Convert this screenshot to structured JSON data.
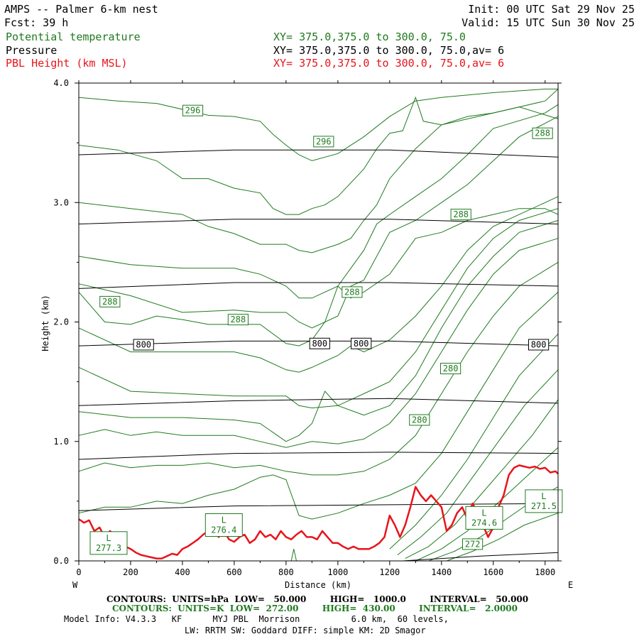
{
  "header": {
    "title": "AMPS -- Palmer 6-km nest",
    "fcst": "Fcst:   39 h",
    "init": "Init: 00 UTC Sat 29 Nov 25",
    "valid": "Valid: 15 UTC Sun 30 Nov 25",
    "field1": "Potential temperature",
    "field2": "Pressure",
    "field3": "PBL Height (km MSL)",
    "xy1": "XY= 375.0,375.0 to 300.0, 75.0",
    "xy2": "XY= 375.0,375.0 to 300.0, 75.0,av=  6",
    "xy3": "XY= 375.0,375.0 to 300.0, 75.0,av=  6"
  },
  "colors": {
    "theta": "#1f7a1f",
    "pressure": "#000000",
    "pbl": "#e8141b"
  },
  "footer": {
    "line1": "CONTOURS:  UNITS=hPa  LOW=   50.000        HIGH=   1000.0        INTERVAL=   50.000",
    "line2": "CONTOURS:  UNITS=K  LOW=  272.00        HIGH=  430.00        INTERVAL=   2.0000",
    "line3": "Model Info: V4.3.3   KF      MYJ PBL  Morrison          6.0 km,  60 levels,",
    "line4": "LW: RRTM SW: Goddard DIFF: simple KM: 2D Smagor"
  },
  "chart_data": {
    "type": "line",
    "xlabel": "Distance (km)",
    "ylabel": "Height (km)",
    "xlim": [
      0,
      1850
    ],
    "ylim": [
      0,
      4.0
    ],
    "x_ticks": [
      "0",
      "200",
      "400",
      "600",
      "800",
      "1000",
      "1200",
      "1400",
      "1600",
      "1800"
    ],
    "x_tick_values": [
      0,
      200,
      400,
      600,
      800,
      1000,
      1200,
      1400,
      1600,
      1800
    ],
    "y_ticks": [
      "0.0",
      "1.0",
      "2.0",
      "3.0",
      "4.0"
    ],
    "y_tick_values": [
      0,
      1,
      2,
      3,
      4
    ],
    "left_end_label": "W",
    "right_end_label": "E",
    "pressure_contours_hPa": [
      {
        "level": 600,
        "x": [
          0,
          600,
          1200,
          1850
        ],
        "y": [
          3.4,
          3.44,
          3.44,
          3.38
        ]
      },
      {
        "level": 700,
        "x": [
          0,
          600,
          1200,
          1850
        ],
        "y": [
          2.82,
          2.86,
          2.86,
          2.82
        ]
      },
      {
        "level": 750,
        "x": [
          0,
          600,
          1200,
          1850
        ],
        "y": [
          2.28,
          2.33,
          2.33,
          2.3
        ]
      },
      {
        "level": 800,
        "x": [
          0,
          600,
          1200,
          1850
        ],
        "y": [
          1.8,
          1.84,
          1.84,
          1.8
        ]
      },
      {
        "level": 850,
        "x": [
          0,
          600,
          1200,
          1850
        ],
        "y": [
          1.3,
          1.34,
          1.36,
          1.32
        ]
      },
      {
        "level": 900,
        "x": [
          0,
          600,
          1200,
          1850
        ],
        "y": [
          0.85,
          0.9,
          0.91,
          0.9
        ]
      },
      {
        "level": 950,
        "x": [
          0,
          600,
          1200,
          1850
        ],
        "y": [
          0.42,
          0.46,
          0.47,
          0.48
        ]
      },
      {
        "level": 1000,
        "x": [
          1250,
          1550,
          1850
        ],
        "y": [
          0.0,
          0.04,
          0.07
        ]
      }
    ],
    "theta_contours_K": [
      {
        "x": [
          0,
          150,
          300,
          500,
          600,
          700,
          750,
          800,
          850,
          900,
          1000,
          1100,
          1200,
          1300,
          1400,
          1600,
          1800,
          1850
        ],
        "y": [
          3.88,
          3.85,
          3.83,
          3.73,
          3.72,
          3.68,
          3.57,
          3.48,
          3.4,
          3.35,
          3.41,
          3.55,
          3.72,
          3.85,
          3.88,
          3.92,
          3.95,
          3.95
        ]
      },
      {
        "x": [
          0,
          150,
          300,
          400,
          500,
          600,
          700,
          750,
          800,
          850,
          900,
          950,
          1000,
          1100,
          1150,
          1200,
          1250,
          1300,
          1330,
          1400,
          1600,
          1800,
          1850
        ],
        "y": [
          3.48,
          3.44,
          3.35,
          3.2,
          3.2,
          3.12,
          3.08,
          2.95,
          2.9,
          2.9,
          2.95,
          2.98,
          3.05,
          3.28,
          3.45,
          3.58,
          3.6,
          3.88,
          3.68,
          3.65,
          3.75,
          3.85,
          3.95
        ]
      },
      {
        "x": [
          0,
          200,
          400,
          500,
          600,
          700,
          800,
          850,
          900,
          1000,
          1050,
          1100,
          1150,
          1200,
          1300,
          1400,
          1500,
          1600,
          1700,
          1850
        ],
        "y": [
          3.0,
          2.95,
          2.9,
          2.8,
          2.74,
          2.65,
          2.65,
          2.6,
          2.58,
          2.65,
          2.7,
          2.85,
          2.98,
          3.2,
          3.45,
          3.65,
          3.72,
          3.75,
          3.8,
          3.7
        ]
      },
      {
        "x": [
          0,
          200,
          400,
          600,
          700,
          800,
          850,
          900,
          1000,
          1050,
          1100,
          1150,
          1200,
          1300,
          1400,
          1500,
          1600,
          1800,
          1850
        ],
        "y": [
          2.55,
          2.48,
          2.45,
          2.45,
          2.4,
          2.3,
          2.2,
          2.2,
          2.3,
          2.45,
          2.6,
          2.82,
          2.9,
          3.05,
          3.2,
          3.4,
          3.62,
          3.75,
          3.82
        ]
      },
      {
        "x": [
          0,
          200,
          400,
          600,
          700,
          800,
          850,
          900,
          1000,
          1050,
          1100,
          1150,
          1200,
          1300,
          1400,
          1500,
          1600,
          1700,
          1850
        ],
        "y": [
          2.32,
          2.22,
          2.08,
          2.1,
          2.08,
          2.08,
          2.0,
          1.95,
          2.05,
          2.3,
          2.35,
          2.55,
          2.75,
          2.85,
          3.0,
          3.15,
          3.35,
          3.55,
          3.72
        ]
      },
      {
        "x": [
          0,
          100,
          200,
          300,
          400,
          500,
          600,
          700,
          800,
          850,
          900,
          950,
          1000,
          1050,
          1100,
          1200,
          1300,
          1400,
          1500,
          1600,
          1700,
          1800,
          1850
        ],
        "y": [
          2.25,
          2.0,
          1.98,
          2.05,
          2.02,
          1.98,
          1.98,
          1.98,
          1.82,
          1.8,
          1.85,
          2.0,
          2.3,
          2.2,
          2.25,
          2.4,
          2.7,
          2.75,
          2.85,
          2.9,
          2.95,
          2.95,
          2.9
        ]
      },
      {
        "x": [
          0,
          200,
          400,
          600,
          700,
          800,
          850,
          900,
          1000,
          1050,
          1100,
          1200,
          1300,
          1400,
          1500,
          1600,
          1700,
          1800,
          1850
        ],
        "y": [
          1.95,
          1.75,
          1.75,
          1.75,
          1.7,
          1.6,
          1.58,
          1.62,
          1.72,
          1.8,
          1.75,
          1.85,
          2.05,
          2.3,
          2.6,
          2.8,
          2.9,
          3.0,
          3.05
        ]
      },
      {
        "x": [
          0,
          200,
          400,
          600,
          700,
          800,
          850,
          900,
          1000,
          1100,
          1200,
          1300,
          1400,
          1500,
          1600,
          1700,
          1850
        ],
        "y": [
          1.62,
          1.42,
          1.4,
          1.38,
          1.38,
          1.38,
          1.3,
          1.28,
          1.3,
          1.4,
          1.5,
          1.75,
          2.1,
          2.45,
          2.7,
          2.85,
          2.95
        ]
      },
      {
        "x": [
          0,
          200,
          400,
          600,
          700,
          800,
          850,
          900,
          950,
          1000,
          1100,
          1200,
          1300,
          1400,
          1500,
          1600,
          1700,
          1850
        ],
        "y": [
          1.25,
          1.2,
          1.2,
          1.18,
          1.15,
          1.0,
          1.05,
          1.15,
          1.42,
          1.3,
          1.22,
          1.3,
          1.55,
          1.95,
          2.3,
          2.55,
          2.75,
          2.85
        ]
      },
      {
        "x": [
          0,
          100,
          200,
          300,
          400,
          500,
          600,
          700,
          800,
          900,
          1000,
          1100,
          1200,
          1300,
          1400,
          1500,
          1600,
          1700,
          1850
        ],
        "y": [
          1.05,
          1.1,
          1.05,
          1.08,
          1.05,
          1.05,
          1.05,
          1.0,
          0.95,
          1.0,
          0.98,
          1.02,
          1.15,
          1.4,
          1.75,
          2.1,
          2.4,
          2.6,
          2.7
        ]
      },
      {
        "x": [
          0,
          100,
          200,
          300,
          400,
          500,
          600,
          700,
          800,
          900,
          1000,
          1100,
          1200,
          1300,
          1400,
          1500,
          1600,
          1700,
          1850
        ],
        "y": [
          0.75,
          0.82,
          0.78,
          0.8,
          0.8,
          0.82,
          0.78,
          0.8,
          0.75,
          0.72,
          0.72,
          0.75,
          0.85,
          1.05,
          1.4,
          1.75,
          2.05,
          2.3,
          2.5
        ]
      },
      {
        "x": [
          0,
          100,
          200,
          300,
          400,
          500,
          600,
          700,
          750,
          800,
          850,
          900,
          1000,
          1100,
          1200,
          1300,
          1400,
          1500,
          1600,
          1700,
          1850
        ],
        "y": [
          0.4,
          0.45,
          0.45,
          0.5,
          0.48,
          0.55,
          0.6,
          0.7,
          0.72,
          0.68,
          0.38,
          0.35,
          0.4,
          0.48,
          0.55,
          0.65,
          0.9,
          1.25,
          1.6,
          1.95,
          2.25
        ]
      },
      {
        "x": [
          1200,
          1300,
          1400,
          1500,
          1600,
          1700,
          1850
        ],
        "y": [
          0.1,
          0.3,
          0.55,
          0.85,
          1.2,
          1.55,
          1.9
        ]
      },
      {
        "x": [
          1230,
          1320,
          1420,
          1520,
          1620,
          1720,
          1850
        ],
        "y": [
          0.05,
          0.2,
          0.4,
          0.7,
          1.0,
          1.3,
          1.6
        ]
      },
      {
        "x": [
          1260,
          1350,
          1450,
          1550,
          1650,
          1750,
          1850
        ],
        "y": [
          0.02,
          0.12,
          0.3,
          0.55,
          0.8,
          1.05,
          1.35
        ]
      },
      {
        "x": [
          1300,
          1400,
          1500,
          1600,
          1700,
          1800,
          1850
        ],
        "y": [
          0.0,
          0.1,
          0.25,
          0.45,
          0.65,
          0.85,
          0.95
        ]
      },
      {
        "x": [
          1350,
          1450,
          1550,
          1650,
          1750,
          1850
        ],
        "y": [
          0.0,
          0.08,
          0.2,
          0.35,
          0.5,
          0.62
        ]
      },
      {
        "x": [
          1420,
          1520,
          1620,
          1720,
          1850
        ],
        "y": [
          0.0,
          0.08,
          0.18,
          0.3,
          0.4
        ]
      },
      {
        "x": [
          820,
          830,
          840
        ],
        "y": [
          0.0,
          0.1,
          0.0
        ]
      }
    ],
    "theta_labels": [
      {
        "text": "296",
        "x": 440,
        "y": 3.77
      },
      {
        "text": "296",
        "x": 945,
        "y": 3.51
      },
      {
        "text": "288",
        "x": 1790,
        "y": 3.58
      },
      {
        "text": "288",
        "x": 1475,
        "y": 2.9
      },
      {
        "text": "288",
        "x": 1055,
        "y": 2.25
      },
      {
        "text": "288",
        "x": 120,
        "y": 2.17
      },
      {
        "text": "288",
        "x": 615,
        "y": 2.02
      },
      {
        "text": "280",
        "x": 1435,
        "y": 1.61
      },
      {
        "text": "280",
        "x": 1315,
        "y": 1.18
      },
      {
        "text": "272",
        "x": 1520,
        "y": 0.14
      }
    ],
    "pressure_labels": [
      {
        "text": "800",
        "x": 250,
        "y": 1.81
      },
      {
        "text": "800",
        "x": 930,
        "y": 1.82
      },
      {
        "text": "800",
        "x": 1090,
        "y": 1.82
      },
      {
        "text": "800",
        "x": 1775,
        "y": 1.81
      }
    ],
    "low_labels": [
      {
        "letter": "L",
        "value": "277.3",
        "x": 115,
        "y": 0.15
      },
      {
        "letter": "L",
        "value": "276.4",
        "x": 560,
        "y": 0.3
      },
      {
        "letter": "L",
        "value": "271.5",
        "x": 1795,
        "y": 0.5
      },
      {
        "letter": "L",
        "value": "274.6",
        "x": 1565,
        "y": 0.36
      }
    ],
    "pbl_height": {
      "x": [
        0,
        20,
        40,
        60,
        80,
        100,
        120,
        140,
        160,
        180,
        200,
        220,
        240,
        260,
        280,
        300,
        320,
        340,
        360,
        380,
        400,
        420,
        440,
        460,
        480,
        500,
        520,
        540,
        560,
        580,
        600,
        620,
        640,
        660,
        680,
        700,
        720,
        740,
        760,
        780,
        800,
        820,
        840,
        860,
        880,
        900,
        920,
        940,
        960,
        980,
        1000,
        1020,
        1040,
        1060,
        1080,
        1100,
        1120,
        1140,
        1160,
        1180,
        1200,
        1220,
        1240,
        1260,
        1280,
        1300,
        1320,
        1340,
        1360,
        1380,
        1400,
        1420,
        1440,
        1460,
        1480,
        1500,
        1520,
        1540,
        1560,
        1580,
        1600,
        1620,
        1640,
        1660,
        1680,
        1700,
        1720,
        1740,
        1760,
        1780,
        1800,
        1820,
        1840,
        1850
      ],
      "y": [
        0.35,
        0.32,
        0.34,
        0.25,
        0.28,
        0.2,
        0.25,
        0.22,
        0.15,
        0.12,
        0.1,
        0.07,
        0.05,
        0.04,
        0.03,
        0.02,
        0.02,
        0.04,
        0.06,
        0.05,
        0.1,
        0.12,
        0.15,
        0.18,
        0.22,
        0.25,
        0.28,
        0.2,
        0.25,
        0.18,
        0.16,
        0.2,
        0.22,
        0.15,
        0.18,
        0.25,
        0.2,
        0.22,
        0.18,
        0.25,
        0.2,
        0.18,
        0.22,
        0.25,
        0.2,
        0.2,
        0.18,
        0.25,
        0.2,
        0.15,
        0.15,
        0.12,
        0.1,
        0.12,
        0.1,
        0.1,
        0.1,
        0.12,
        0.15,
        0.2,
        0.38,
        0.3,
        0.2,
        0.3,
        0.45,
        0.62,
        0.55,
        0.5,
        0.55,
        0.5,
        0.45,
        0.25,
        0.3,
        0.4,
        0.45,
        0.35,
        0.48,
        0.4,
        0.3,
        0.2,
        0.28,
        0.45,
        0.55,
        0.72,
        0.78,
        0.8,
        0.79,
        0.78,
        0.79,
        0.77,
        0.78,
        0.74,
        0.75,
        0.73
      ]
    }
  }
}
